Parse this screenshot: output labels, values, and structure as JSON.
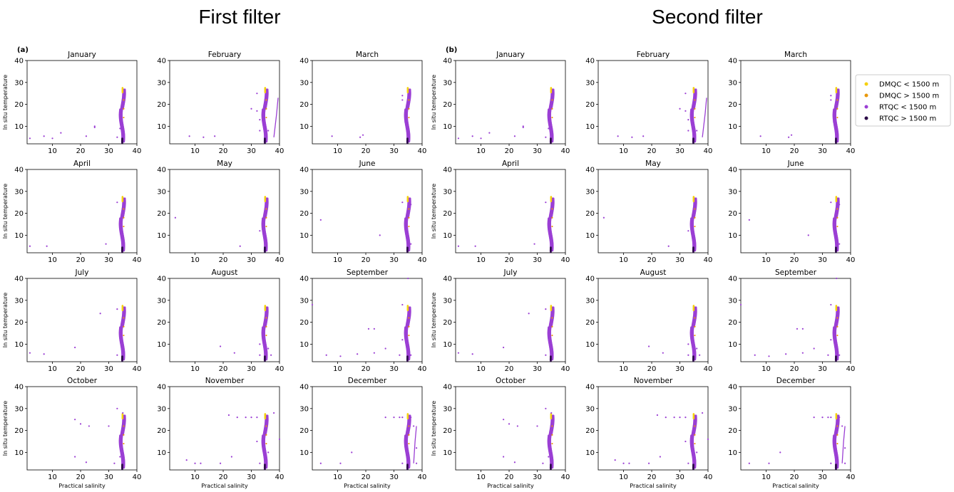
{
  "headings": {
    "left": "First filter",
    "right": "Second filter"
  },
  "panel_labels": {
    "left": "(a)",
    "right": "(b)"
  },
  "axes": {
    "xlabel": "Practical salinity",
    "ylabel": "In situ temperature",
    "xlim": [
      1,
      40
    ],
    "ylim": [
      2,
      40
    ],
    "xticks": [
      "10",
      "20",
      "30",
      "40"
    ],
    "yticks": [
      "10",
      "20",
      "30",
      "40"
    ]
  },
  "colors": {
    "dmqc_shallow": "#f5d10f",
    "dmqc_deep": "#e8980c",
    "rtqc_shallow": "#9b3fd4",
    "rtqc_deep": "#2b0a47"
  },
  "legend": {
    "placement": "right",
    "entries": [
      "DMQC < 1500 m",
      "DMQC > 1500 m",
      "RTQC < 1500 m",
      "RTQC > 1500 m"
    ]
  },
  "chart_data": {
    "type": "scatter",
    "months": [
      "January",
      "February",
      "March",
      "April",
      "May",
      "June",
      "July",
      "August",
      "September",
      "October",
      "November",
      "December"
    ],
    "series": [
      {
        "name": "DMQC < 1500 m"
      },
      {
        "name": "DMQC > 1500 m"
      },
      {
        "name": "RTQC < 1500 m"
      },
      {
        "name": "RTQC > 1500 m"
      }
    ],
    "main_profile": {
      "salinity_center": 34.7,
      "temperature_range": [
        3,
        27
      ]
    },
    "outliers": {
      "January": [
        [
          2,
          4.5
        ],
        [
          7,
          5.5
        ],
        [
          10,
          4.5
        ],
        [
          13,
          7
        ],
        [
          22,
          5.5
        ],
        [
          25,
          9.5
        ],
        [
          25,
          10
        ],
        [
          33,
          5
        ],
        [
          34,
          9
        ]
      ],
      "February": [
        [
          8,
          5.5
        ],
        [
          13,
          5
        ],
        [
          17,
          5.5
        ],
        [
          30,
          18
        ],
        [
          32,
          25
        ],
        [
          32,
          17
        ],
        [
          33,
          13
        ],
        [
          33,
          8
        ],
        [
          36,
          8
        ]
      ],
      "March": [
        [
          8,
          5.5
        ],
        [
          18,
          5
        ],
        [
          19,
          6
        ],
        [
          33,
          24
        ],
        [
          33,
          22
        ],
        [
          34,
          12
        ]
      ],
      "April": [
        [
          2,
          5
        ],
        [
          8,
          5
        ],
        [
          29,
          6
        ],
        [
          33,
          25
        ]
      ],
      "May": [
        [
          3,
          18
        ],
        [
          26,
          5
        ],
        [
          33,
          12
        ]
      ],
      "June": [
        [
          4,
          17
        ],
        [
          25,
          10
        ],
        [
          33,
          25
        ],
        [
          35,
          5
        ],
        [
          36,
          24
        ],
        [
          36,
          6
        ]
      ],
      "July": [
        [
          2,
          6
        ],
        [
          7,
          5.5
        ],
        [
          18,
          8.5
        ],
        [
          27,
          24
        ],
        [
          33,
          26
        ],
        [
          33,
          5
        ],
        [
          35,
          8
        ]
      ],
      "August": [
        [
          19,
          9
        ],
        [
          24,
          6
        ],
        [
          33,
          5
        ],
        [
          33,
          10
        ],
        [
          36,
          8
        ],
        [
          37,
          5
        ]
      ],
      "September": [
        [
          1,
          28
        ],
        [
          6,
          5
        ],
        [
          11,
          4.5
        ],
        [
          17,
          5.5
        ],
        [
          21,
          17
        ],
        [
          23,
          17
        ],
        [
          23,
          6
        ],
        [
          27,
          8
        ],
        [
          32,
          5
        ],
        [
          33,
          28
        ],
        [
          33,
          12
        ],
        [
          35,
          40
        ],
        [
          36,
          5
        ]
      ],
      "October": [
        [
          18,
          25
        ],
        [
          18,
          8
        ],
        [
          20,
          23
        ],
        [
          23,
          22
        ],
        [
          22,
          5.5
        ],
        [
          30,
          22
        ],
        [
          32,
          5
        ],
        [
          33,
          30
        ],
        [
          34,
          8
        ],
        [
          35,
          28
        ]
      ],
      "November": [
        [
          7,
          6.5
        ],
        [
          10,
          5
        ],
        [
          12,
          5
        ],
        [
          19,
          5
        ],
        [
          22,
          27
        ],
        [
          23,
          8
        ],
        [
          25,
          26
        ],
        [
          28,
          26
        ],
        [
          30,
          26
        ],
        [
          32,
          26
        ],
        [
          32,
          15
        ],
        [
          33,
          5
        ],
        [
          36,
          10
        ],
        [
          38,
          28
        ],
        [
          40,
          16
        ]
      ],
      "December": [
        [
          4,
          5
        ],
        [
          11,
          5
        ],
        [
          15,
          10
        ],
        [
          27,
          26
        ],
        [
          30,
          26
        ],
        [
          32,
          26
        ],
        [
          33,
          26
        ],
        [
          33,
          5
        ],
        [
          36,
          26
        ],
        [
          37,
          22
        ],
        [
          38,
          12
        ],
        [
          38,
          5
        ]
      ]
    },
    "lines": {
      "February": {
        "salinity": [
          38,
          39,
          39.5
        ],
        "temperature": [
          5,
          16,
          23
        ]
      },
      "December": {
        "salinity": [
          37,
          37.5,
          38
        ],
        "temperature": [
          5,
          15,
          22
        ]
      }
    }
  }
}
